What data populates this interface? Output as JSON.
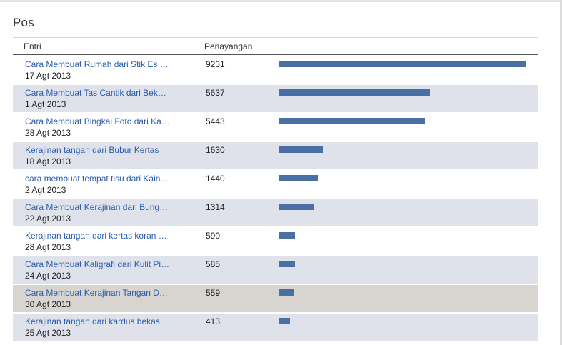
{
  "panel": {
    "title": "Pos",
    "columns": {
      "entry": "Entri",
      "views": "Penayangan"
    }
  },
  "colors": {
    "bar": "#4a6fa5",
    "link": "#2a5db0",
    "row_alt": "#dfe2ea",
    "row_hover": "#d8d4d0"
  },
  "posts": [
    {
      "title": "Cara Membuat Rumah dari Stik Es …",
      "date": "17 Agt 2013",
      "views": "9231",
      "value": 9231
    },
    {
      "title": "Cara Membuat Tas Cantik dari Bek…",
      "date": "1 Agt 2013",
      "views": "5637",
      "value": 5637
    },
    {
      "title": "Cara Membuat Bingkai Foto dari Ka…",
      "date": "28 Agt 2013",
      "views": "5443",
      "value": 5443
    },
    {
      "title": "Kerajinan tangan dari Bubur Kertas",
      "date": "18 Agt 2013",
      "views": "1630",
      "value": 1630
    },
    {
      "title": "cara membuat tempat tisu dari Kain…",
      "date": "2 Agt 2013",
      "views": "1440",
      "value": 1440
    },
    {
      "title": "Cara Membuat Kerajinan dari Bung…",
      "date": "22 Agt 2013",
      "views": "1314",
      "value": 1314
    },
    {
      "title": "Kerajinan tangan dari kertas koran …",
      "date": "28 Agt 2013",
      "views": "590",
      "value": 590
    },
    {
      "title": "Cara Membuat Kaligrafi dari Kulit Pi…",
      "date": "24 Agt 2013",
      "views": "585",
      "value": 585
    },
    {
      "title": "Cara Membuat Kerajinan Tangan D…",
      "date": "30 Agt 2013",
      "views": "559",
      "value": 559
    },
    {
      "title": "Kerajinan tangan dari kardus bekas",
      "date": "25 Agt 2013",
      "views": "413",
      "value": 413
    }
  ]
}
